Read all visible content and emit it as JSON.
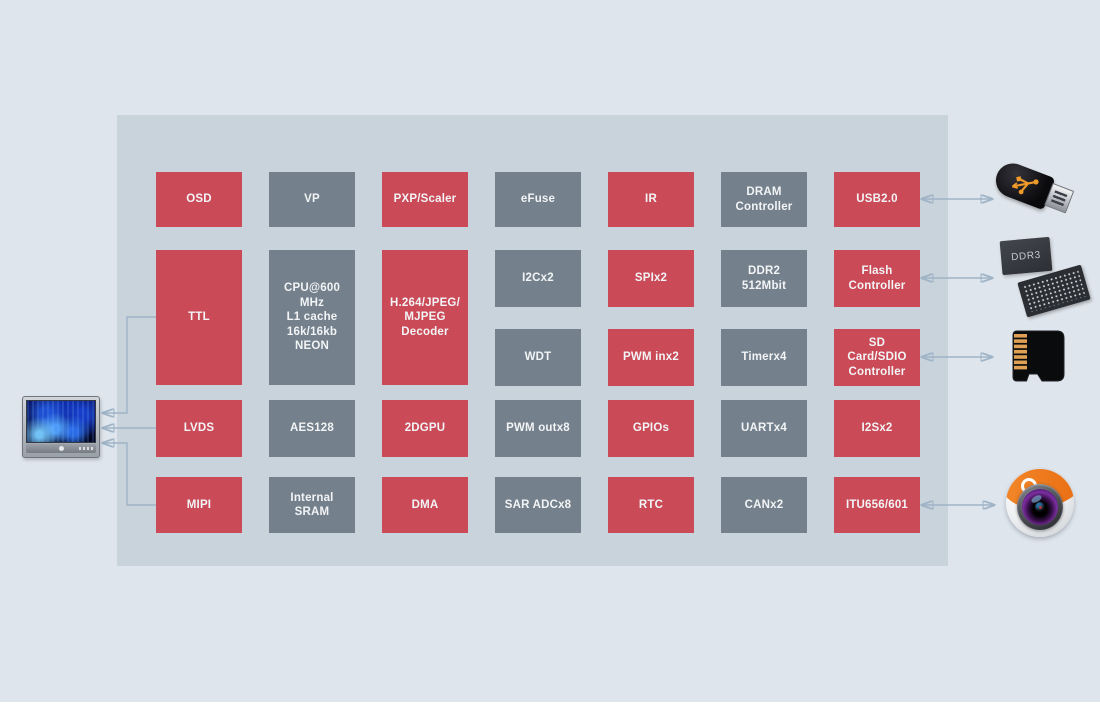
{
  "palette": {
    "background": "#dfe5ec",
    "canvas": "#c9d3dc",
    "bottom_strip": "#ffffff",
    "block_red": "#cb4a57",
    "block_gray": "#74808b",
    "block_text": "#f2f4f6",
    "wire_line": "#9fb4c7",
    "wire_arrow": "#7d9cb5"
  },
  "blocks": [
    {
      "id": "osd",
      "label": "OSD",
      "variant": "red",
      "col": 1,
      "row": "r1"
    },
    {
      "id": "ttl",
      "label": "TTL",
      "variant": "red",
      "col": 1,
      "row": "tall"
    },
    {
      "id": "lvds",
      "label": "LVDS",
      "variant": "red",
      "col": 1,
      "row": "r3"
    },
    {
      "id": "mipi",
      "label": "MIPI",
      "variant": "red",
      "col": 1,
      "row": "r4"
    },
    {
      "id": "vp",
      "label": "VP",
      "variant": "gray",
      "col": 2,
      "row": "r1"
    },
    {
      "id": "cpu",
      "label": "CPU@600\nMHz\nL1 cache\n16k/16kb\nNEON",
      "variant": "gray",
      "col": 2,
      "row": "tall"
    },
    {
      "id": "aes128",
      "label": "AES128",
      "variant": "gray",
      "col": 2,
      "row": "r3"
    },
    {
      "id": "internal-sram",
      "label": "Internal\nSRAM",
      "variant": "gray",
      "col": 2,
      "row": "r4"
    },
    {
      "id": "pxp-scaler",
      "label": "PXP/Scaler",
      "variant": "red",
      "col": 3,
      "row": "r1"
    },
    {
      "id": "h264-decoder",
      "label": "H.264/JPEG/\nMJPEG\nDecoder",
      "variant": "red",
      "col": 3,
      "row": "tall"
    },
    {
      "id": "2dgpu",
      "label": "2DGPU",
      "variant": "red",
      "col": 3,
      "row": "r3"
    },
    {
      "id": "dma",
      "label": "DMA",
      "variant": "red",
      "col": 3,
      "row": "r4"
    },
    {
      "id": "efuse",
      "label": "eFuse",
      "variant": "gray",
      "col": 4,
      "row": "r1"
    },
    {
      "id": "i2cx2",
      "label": "I2Cx2",
      "variant": "gray",
      "col": 4,
      "row": "r2a"
    },
    {
      "id": "wdt",
      "label": "WDT",
      "variant": "gray",
      "col": 4,
      "row": "r2b"
    },
    {
      "id": "pwm-outx8",
      "label": "PWM outx8",
      "variant": "gray",
      "col": 4,
      "row": "r3"
    },
    {
      "id": "sar-adcx8",
      "label": "SAR ADCx8",
      "variant": "gray",
      "col": 4,
      "row": "r4"
    },
    {
      "id": "ir",
      "label": "IR",
      "variant": "red",
      "col": 5,
      "row": "r1"
    },
    {
      "id": "spix2",
      "label": "SPIx2",
      "variant": "red",
      "col": 5,
      "row": "r2a"
    },
    {
      "id": "pwm-inx2",
      "label": "PWM inx2",
      "variant": "red",
      "col": 5,
      "row": "r2b"
    },
    {
      "id": "gpios",
      "label": "GPIOs",
      "variant": "red",
      "col": 5,
      "row": "r3"
    },
    {
      "id": "rtc",
      "label": "RTC",
      "variant": "red",
      "col": 5,
      "row": "r4"
    },
    {
      "id": "dram-controller",
      "label": "DRAM\nController",
      "variant": "gray",
      "col": 6,
      "row": "r1"
    },
    {
      "id": "ddr2-512mbit",
      "label": "DDR2\n512Mbit",
      "variant": "gray",
      "col": 6,
      "row": "r2a"
    },
    {
      "id": "timerx4",
      "label": "Timerx4",
      "variant": "gray",
      "col": 6,
      "row": "r2b"
    },
    {
      "id": "uartx4",
      "label": "UARTx4",
      "variant": "gray",
      "col": 6,
      "row": "r3"
    },
    {
      "id": "canx2",
      "label": "CANx2",
      "variant": "gray",
      "col": 6,
      "row": "r4"
    },
    {
      "id": "usb20",
      "label": "USB2.0",
      "variant": "red",
      "col": 7,
      "row": "r1"
    },
    {
      "id": "flash-controller",
      "label": "Flash\nController",
      "variant": "red",
      "col": 7,
      "row": "r2a"
    },
    {
      "id": "sd-sdio",
      "label": "SD\nCard/SDIO\nController",
      "variant": "red",
      "col": 7,
      "row": "r2b"
    },
    {
      "id": "i2sx2",
      "label": "I2Sx2",
      "variant": "red",
      "col": 7,
      "row": "r3"
    },
    {
      "id": "itu656-601",
      "label": "ITU656/601",
      "variant": "red",
      "col": 7,
      "row": "r4"
    }
  ],
  "peripherals": {
    "monitor": {
      "name": "display-monitor"
    },
    "usb_drive": {
      "name": "usb-flash-drive"
    },
    "ddr3": {
      "name": "ddr3-memory-chips",
      "label": "DDR3"
    },
    "microsd": {
      "name": "micro-sd-card"
    },
    "camera": {
      "name": "camera-module"
    }
  },
  "connections": [
    {
      "from": "TTL",
      "to": "display-monitor",
      "direction": "to-target"
    },
    {
      "from": "LVDS",
      "to": "display-monitor",
      "direction": "to-target"
    },
    {
      "from": "MIPI",
      "to": "display-monitor",
      "direction": "to-target"
    },
    {
      "from": "USB2.0",
      "to": "usb-flash-drive",
      "direction": "bidirectional"
    },
    {
      "from": "Flash Controller",
      "to": "ddr3-memory-chips",
      "direction": "bidirectional"
    },
    {
      "from": "SD Card/SDIO Controller",
      "to": "micro-sd-card",
      "direction": "bidirectional"
    },
    {
      "from": "ITU656/601",
      "to": "camera-module",
      "direction": "bidirectional"
    }
  ]
}
